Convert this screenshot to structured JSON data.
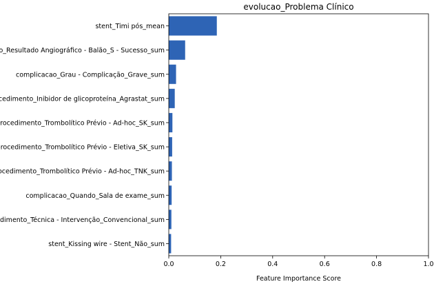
{
  "chart_data": {
    "type": "bar",
    "orientation": "horizontal",
    "title": "evolucao_Problema Clínico",
    "xlabel": "Feature Importance Score",
    "ylabel": "",
    "xlim": [
      0,
      1.0
    ],
    "xticks": [
      "0.0",
      "0.2",
      "0.4",
      "0.6",
      "0.8",
      "1.0"
    ],
    "categories": [
      "stent_Timi pós_mean",
      "balao_Resultado Angiográfico - Balão_S - Sucesso_sum",
      "complicacao_Grau - Complicação_Grave_sum",
      "procedimento_Inibidor de glicoproteína_Agrastat_sum",
      "procedimento_Trombolítico Prévio - Ad-hoc_SK_sum",
      "procedimento_Trombolítico Prévio - Eletiva_SK_sum",
      "procedimento_Trombolítico Prévio - Ad-hoc_TNK_sum",
      "complicacao_Quando_Sala de exame_sum",
      "procedimento_Técnica - Intervenção_Convencional_sum",
      "stent_Kissing wire - Stent_Não_sum"
    ],
    "values": [
      0.185,
      0.063,
      0.028,
      0.023,
      0.014,
      0.013,
      0.012,
      0.011,
      0.01,
      0.009
    ],
    "bar_color": "#2e64b5",
    "grid": false,
    "legend": "none"
  }
}
